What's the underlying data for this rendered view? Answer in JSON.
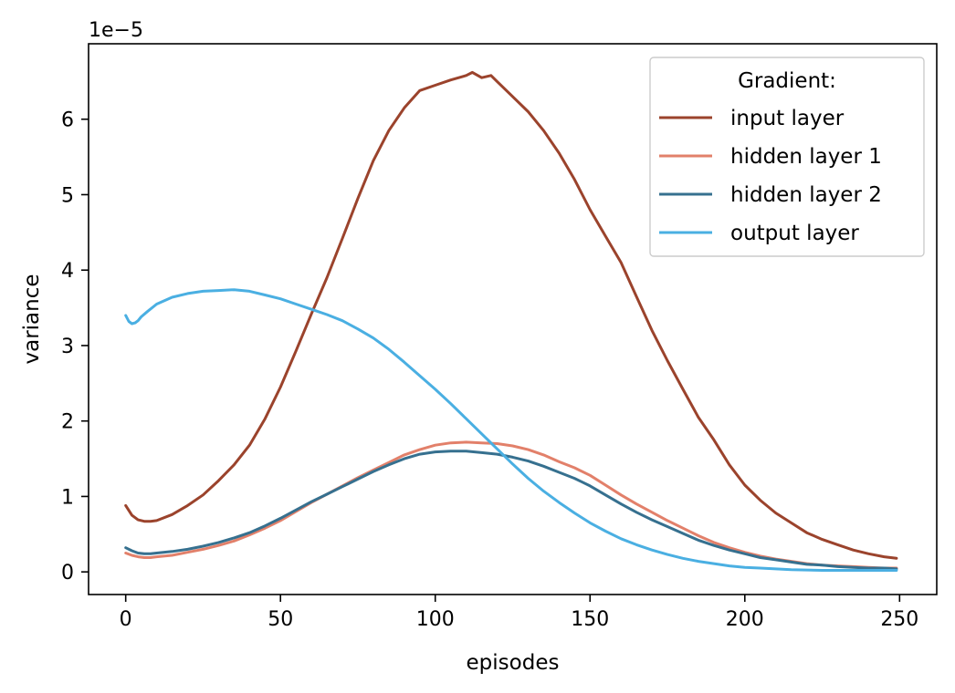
{
  "chart_data": {
    "type": "line",
    "xlabel": "episodes",
    "ylabel": "variance",
    "y_offset_label": "1e−5",
    "xlim": [
      -12,
      262
    ],
    "ylim": [
      -0.3,
      7.0
    ],
    "x_ticks": [
      0,
      50,
      100,
      150,
      200,
      250
    ],
    "y_ticks": [
      0,
      1,
      2,
      3,
      4,
      5,
      6
    ],
    "grid": false,
    "legend": {
      "title": "Gradient:",
      "placement": "top-right"
    },
    "series": [
      {
        "name": "input layer",
        "color": "#9b432c",
        "x": [
          0,
          2,
          4,
          6,
          8,
          10,
          15,
          20,
          25,
          30,
          35,
          40,
          45,
          50,
          55,
          60,
          65,
          70,
          75,
          80,
          85,
          90,
          95,
          100,
          105,
          110,
          112,
          115,
          118,
          120,
          125,
          130,
          135,
          140,
          145,
          150,
          155,
          160,
          165,
          170,
          175,
          180,
          185,
          190,
          195,
          200,
          205,
          210,
          215,
          220,
          225,
          230,
          235,
          240,
          245,
          249
        ],
        "y": [
          0.88,
          0.75,
          0.69,
          0.67,
          0.67,
          0.68,
          0.76,
          0.88,
          1.02,
          1.21,
          1.42,
          1.68,
          2.03,
          2.45,
          2.93,
          3.42,
          3.9,
          4.42,
          4.95,
          5.45,
          5.85,
          6.15,
          6.38,
          6.45,
          6.52,
          6.58,
          6.62,
          6.55,
          6.58,
          6.5,
          6.3,
          6.1,
          5.85,
          5.55,
          5.2,
          4.8,
          4.45,
          4.1,
          3.65,
          3.2,
          2.8,
          2.42,
          2.05,
          1.75,
          1.42,
          1.15,
          0.95,
          0.78,
          0.65,
          0.52,
          0.43,
          0.36,
          0.29,
          0.24,
          0.2,
          0.18
        ]
      },
      {
        "name": "hidden layer 1",
        "color": "#e2806a",
        "x": [
          0,
          2,
          4,
          6,
          8,
          10,
          15,
          20,
          25,
          30,
          35,
          40,
          45,
          50,
          55,
          60,
          65,
          70,
          75,
          80,
          85,
          90,
          95,
          100,
          105,
          110,
          115,
          120,
          125,
          130,
          135,
          140,
          145,
          150,
          155,
          160,
          165,
          170,
          175,
          180,
          185,
          190,
          195,
          200,
          205,
          210,
          215,
          220,
          225,
          230,
          235,
          240,
          245,
          249
        ],
        "y": [
          0.25,
          0.22,
          0.2,
          0.19,
          0.19,
          0.2,
          0.22,
          0.26,
          0.3,
          0.35,
          0.41,
          0.49,
          0.58,
          0.68,
          0.8,
          0.92,
          1.03,
          1.14,
          1.25,
          1.35,
          1.45,
          1.55,
          1.62,
          1.68,
          1.71,
          1.72,
          1.71,
          1.7,
          1.67,
          1.62,
          1.55,
          1.46,
          1.38,
          1.28,
          1.15,
          1.02,
          0.9,
          0.79,
          0.68,
          0.58,
          0.48,
          0.39,
          0.32,
          0.26,
          0.21,
          0.17,
          0.14,
          0.11,
          0.09,
          0.08,
          0.07,
          0.06,
          0.05,
          0.05
        ]
      },
      {
        "name": "hidden layer 2",
        "color": "#36708f",
        "x": [
          0,
          2,
          4,
          6,
          8,
          10,
          15,
          20,
          25,
          30,
          35,
          40,
          45,
          50,
          55,
          60,
          65,
          70,
          75,
          80,
          85,
          90,
          95,
          100,
          105,
          110,
          115,
          120,
          125,
          130,
          135,
          140,
          145,
          150,
          155,
          160,
          165,
          170,
          175,
          180,
          185,
          190,
          195,
          200,
          205,
          210,
          215,
          220,
          225,
          230,
          235,
          240,
          245,
          249
        ],
        "y": [
          0.32,
          0.28,
          0.25,
          0.24,
          0.24,
          0.25,
          0.27,
          0.3,
          0.34,
          0.39,
          0.45,
          0.52,
          0.61,
          0.71,
          0.82,
          0.93,
          1.03,
          1.13,
          1.23,
          1.33,
          1.42,
          1.5,
          1.56,
          1.59,
          1.6,
          1.6,
          1.58,
          1.56,
          1.52,
          1.47,
          1.4,
          1.32,
          1.24,
          1.14,
          1.02,
          0.9,
          0.79,
          0.69,
          0.6,
          0.51,
          0.42,
          0.35,
          0.29,
          0.24,
          0.19,
          0.16,
          0.13,
          0.1,
          0.09,
          0.07,
          0.06,
          0.05,
          0.05,
          0.04
        ]
      },
      {
        "name": "output layer",
        "color": "#4aafe2",
        "x": [
          0,
          1,
          2,
          3,
          4,
          5,
          7,
          10,
          15,
          20,
          25,
          30,
          35,
          40,
          45,
          50,
          55,
          60,
          65,
          70,
          75,
          80,
          85,
          90,
          95,
          100,
          105,
          110,
          115,
          120,
          125,
          130,
          135,
          140,
          145,
          150,
          155,
          160,
          165,
          170,
          175,
          180,
          185,
          190,
          195,
          200,
          205,
          210,
          215,
          220,
          225,
          230,
          235,
          240,
          245,
          249
        ],
        "y": [
          3.4,
          3.32,
          3.29,
          3.3,
          3.33,
          3.38,
          3.45,
          3.55,
          3.64,
          3.69,
          3.72,
          3.73,
          3.74,
          3.72,
          3.67,
          3.62,
          3.55,
          3.48,
          3.41,
          3.33,
          3.22,
          3.1,
          2.95,
          2.78,
          2.6,
          2.42,
          2.23,
          2.03,
          1.83,
          1.63,
          1.43,
          1.24,
          1.07,
          0.92,
          0.78,
          0.65,
          0.54,
          0.44,
          0.36,
          0.29,
          0.23,
          0.18,
          0.14,
          0.11,
          0.08,
          0.06,
          0.05,
          0.04,
          0.03,
          0.025,
          0.02,
          0.02,
          0.02,
          0.02,
          0.02,
          0.02
        ]
      }
    ]
  }
}
